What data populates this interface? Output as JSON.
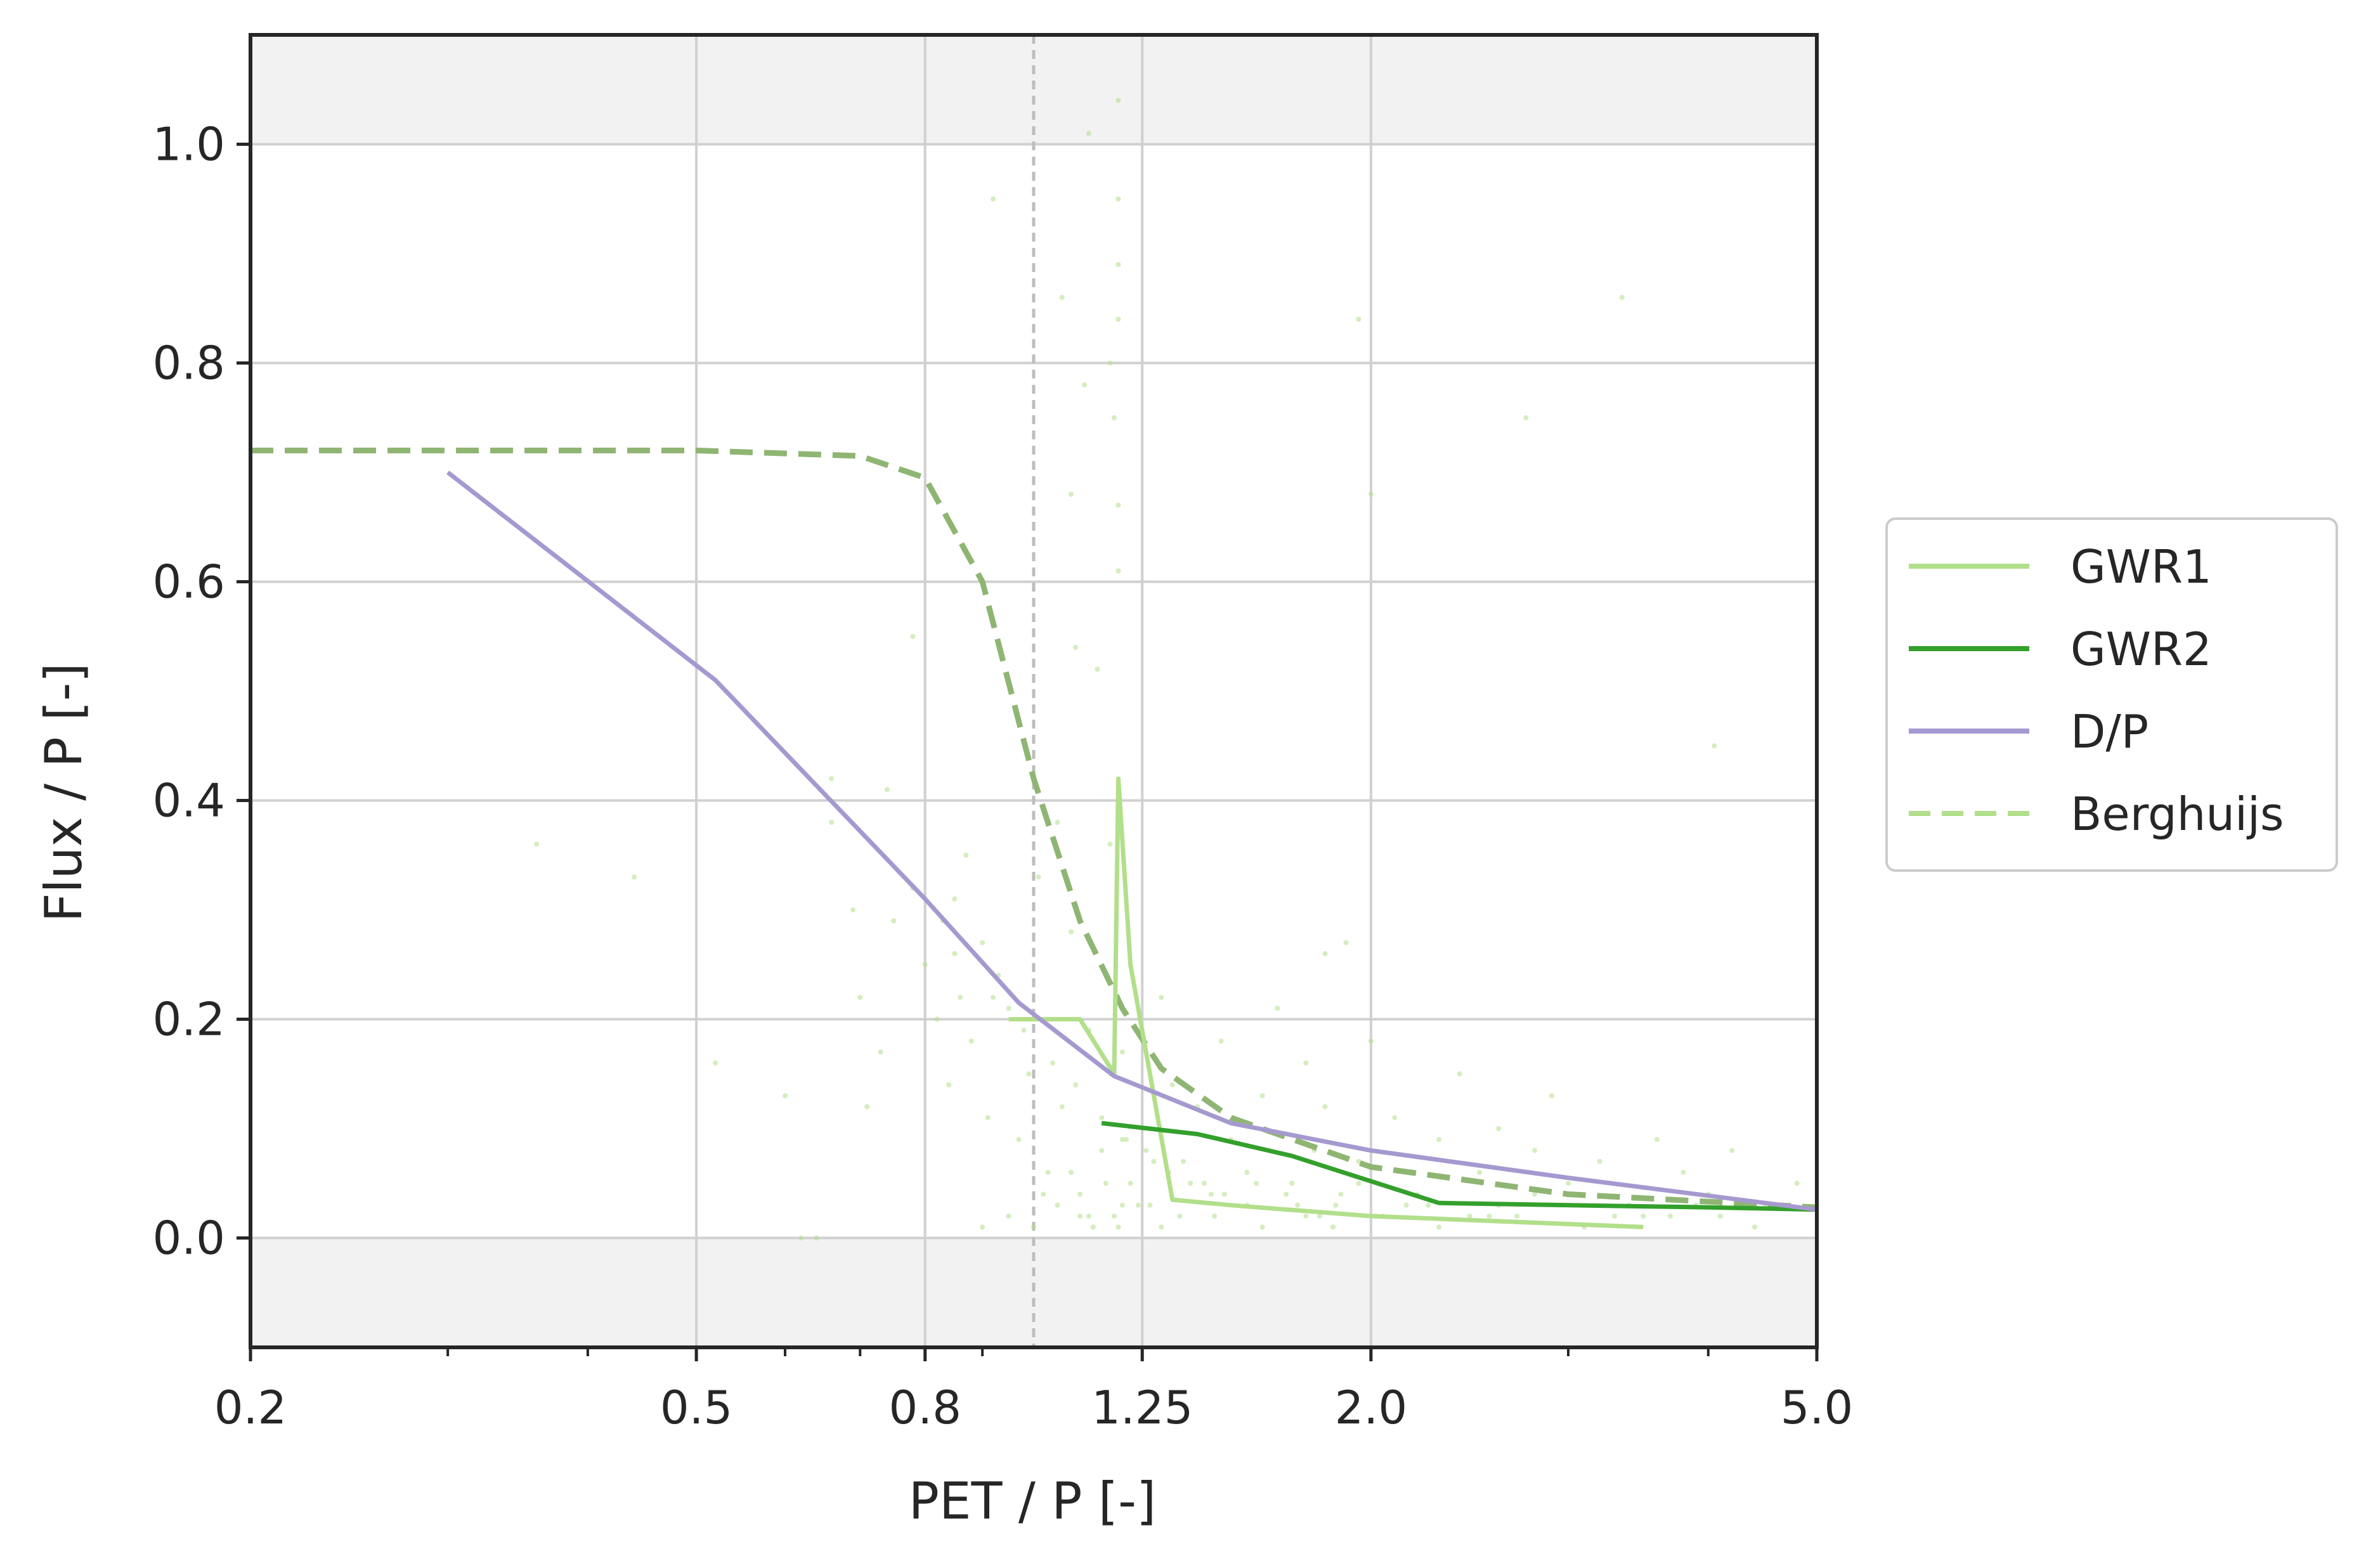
{
  "chart_data": {
    "type": "line",
    "title": "",
    "xlabel": "PET / P [-]",
    "ylabel": "Flux / P [-]",
    "x_scale": "log",
    "xlim": [
      0.2,
      5.0
    ],
    "ylim": [
      -0.1,
      1.1
    ],
    "x_ticks": [
      0.2,
      0.5,
      0.8,
      1.25,
      2.0,
      5.0
    ],
    "x_tick_labels": [
      "0.2",
      "0.5",
      "0.8",
      "1.25",
      "2.0",
      "5.0"
    ],
    "y_ticks": [
      0.0,
      0.2,
      0.4,
      0.6,
      0.8,
      1.0
    ],
    "y_tick_labels": [
      "0.0",
      "0.2",
      "0.4",
      "0.6",
      "0.8",
      "1.0"
    ],
    "grid": true,
    "shaded_y_bands": [
      [
        -0.1,
        0.0
      ],
      [
        1.0,
        1.1
      ]
    ],
    "vertical_reference_line": {
      "x": 1.0,
      "style": "dashed"
    },
    "legend_position": "right-outside",
    "series": [
      {
        "name": "GWR1",
        "style": "solid",
        "color": "#b2df8a",
        "x": [
          0.95,
          1.1,
          1.18,
          1.19,
          1.22,
          1.33,
          1.5,
          2.0,
          3.5
        ],
        "y": [
          0.2,
          0.2,
          0.15,
          0.42,
          0.25,
          0.035,
          0.03,
          0.02,
          0.01
        ]
      },
      {
        "name": "GWR2",
        "style": "solid",
        "color": "#33a02c",
        "x": [
          1.15,
          1.4,
          1.7,
          2.3,
          3.0,
          4.0,
          5.0
        ],
        "y": [
          0.105,
          0.095,
          0.075,
          0.032,
          0.03,
          0.028,
          0.026
        ]
      },
      {
        "name": "D/P",
        "style": "solid",
        "color": "#a599d0",
        "x": [
          0.3,
          0.52,
          0.8,
          0.97,
          1.18,
          1.5,
          2.0,
          3.0,
          5.0
        ],
        "y": [
          0.7,
          0.51,
          0.31,
          0.215,
          0.148,
          0.105,
          0.08,
          0.055,
          0.026
        ]
      },
      {
        "name": "Berghuijs",
        "style": "dashed",
        "color": "#b2df8a",
        "x": [
          0.2,
          0.3,
          0.5,
          0.7,
          0.8,
          0.9,
          1.0,
          1.1,
          1.2,
          1.3,
          1.5,
          2.0,
          3.0,
          5.0
        ],
        "y": [
          0.72,
          0.72,
          0.72,
          0.715,
          0.695,
          0.6,
          0.42,
          0.29,
          0.21,
          0.155,
          0.11,
          0.065,
          0.04,
          0.028
        ]
      }
    ],
    "scatter_points": {
      "color": "#b2df8a",
      "x": [
        0.36,
        0.44,
        0.52,
        0.6,
        0.62,
        0.66,
        0.69,
        0.71,
        0.73,
        0.75,
        0.78,
        0.8,
        0.82,
        0.84,
        0.85,
        0.86,
        0.88,
        0.9,
        0.91,
        0.93,
        0.95,
        0.97,
        0.99,
        1.01,
        1.03,
        1.05,
        1.06,
        1.08,
        1.1,
        1.12,
        1.14,
        1.15,
        1.17,
        1.18,
        1.19,
        1.2,
        1.22,
        1.25,
        1.27,
        1.3,
        1.33,
        1.36,
        1.4,
        1.44,
        1.47,
        1.5,
        1.55,
        1.6,
        1.65,
        1.7,
        1.75,
        1.78,
        1.82,
        1.86,
        1.9,
        1.95,
        2.0,
        2.1,
        2.2,
        2.3,
        2.4,
        2.5,
        2.6,
        2.7,
        2.8,
        2.9,
        3.0,
        3.2,
        3.4,
        3.6,
        3.8,
        4.0,
        4.2,
        4.5,
        4.8,
        0.9,
        0.95,
        1.0,
        1.05,
        1.1,
        1.13,
        1.18,
        1.19,
        1.2,
        1.3,
        1.45,
        1.6,
        1.75,
        1.85,
        2.05,
        2.3,
        2.6,
        3.1,
        3.7,
        1.02,
        1.08,
        1.12,
        1.16,
        1.2,
        1.24,
        1.28,
        1.35,
        1.42,
        1.55,
        1.68,
        1.8,
        1.95,
        2.15,
        2.45,
        2.8,
        3.3,
        3.9,
        4.4,
        0.85,
        0.92,
        0.98,
        1.04,
        1.09,
        1.15,
        1.21,
        1.26,
        1.32,
        1.38,
        1.48,
        1.58,
        1.72,
        1.88,
        2.02,
        2.25,
        2.55,
        2.95,
        3.5,
        4.1,
        1.19,
        1.19,
        1.19,
        1.19,
        1.19,
        1.17,
        1.12,
        1.08,
        1.06,
        1.09,
        1.11,
        1.95,
        1.82,
        2.0,
        3.35,
        4.05,
        2.75,
        0.92,
        0.87,
        0.83,
        0.78,
        0.74,
        0.7,
        0.66,
        0.64
      ],
      "y": [
        0.36,
        0.33,
        0.16,
        0.13,
        0.0,
        0.42,
        0.3,
        0.12,
        0.17,
        0.29,
        0.32,
        0.25,
        0.2,
        0.14,
        0.31,
        0.22,
        0.18,
        0.27,
        0.11,
        0.24,
        0.21,
        0.09,
        0.15,
        0.33,
        0.06,
        0.38,
        0.12,
        0.28,
        0.04,
        0.19,
        0.52,
        0.08,
        0.36,
        0.75,
        0.61,
        0.17,
        0.05,
        0.1,
        0.03,
        0.22,
        0.14,
        0.07,
        0.12,
        0.04,
        0.18,
        0.09,
        0.06,
        0.13,
        0.21,
        0.05,
        0.16,
        0.08,
        0.12,
        0.03,
        0.27,
        0.07,
        0.18,
        0.11,
        0.04,
        0.09,
        0.15,
        0.06,
        0.1,
        0.02,
        0.08,
        0.13,
        0.05,
        0.07,
        0.03,
        0.09,
        0.06,
        0.04,
        0.08,
        0.03,
        0.05,
        0.01,
        0.02,
        0.01,
        0.03,
        0.02,
        0.01,
        0.02,
        0.01,
        0.03,
        0.01,
        0.02,
        0.01,
        0.02,
        0.01,
        0.02,
        0.01,
        0.03,
        0.01,
        0.02,
        0.04,
        0.06,
        0.02,
        0.05,
        0.09,
        0.03,
        0.07,
        0.02,
        0.05,
        0.03,
        0.04,
        0.02,
        0.05,
        0.03,
        0.02,
        0.04,
        0.02,
        0.03,
        0.01,
        0.26,
        0.22,
        0.19,
        0.16,
        0.14,
        0.11,
        0.09,
        0.08,
        0.06,
        0.05,
        0.04,
        0.05,
        0.03,
        0.04,
        0.02,
        0.03,
        0.02,
        0.03,
        0.02,
        0.02,
        0.84,
        0.89,
        0.95,
        1.04,
        0.67,
        0.8,
        1.01,
        0.68,
        0.86,
        0.54,
        0.78,
        0.84,
        0.26,
        0.68,
        0.86,
        0.45,
        0.75,
        0.95,
        0.35,
        0.29,
        0.55,
        0.41,
        0.22,
        0.38,
        0.0
      ]
    }
  }
}
